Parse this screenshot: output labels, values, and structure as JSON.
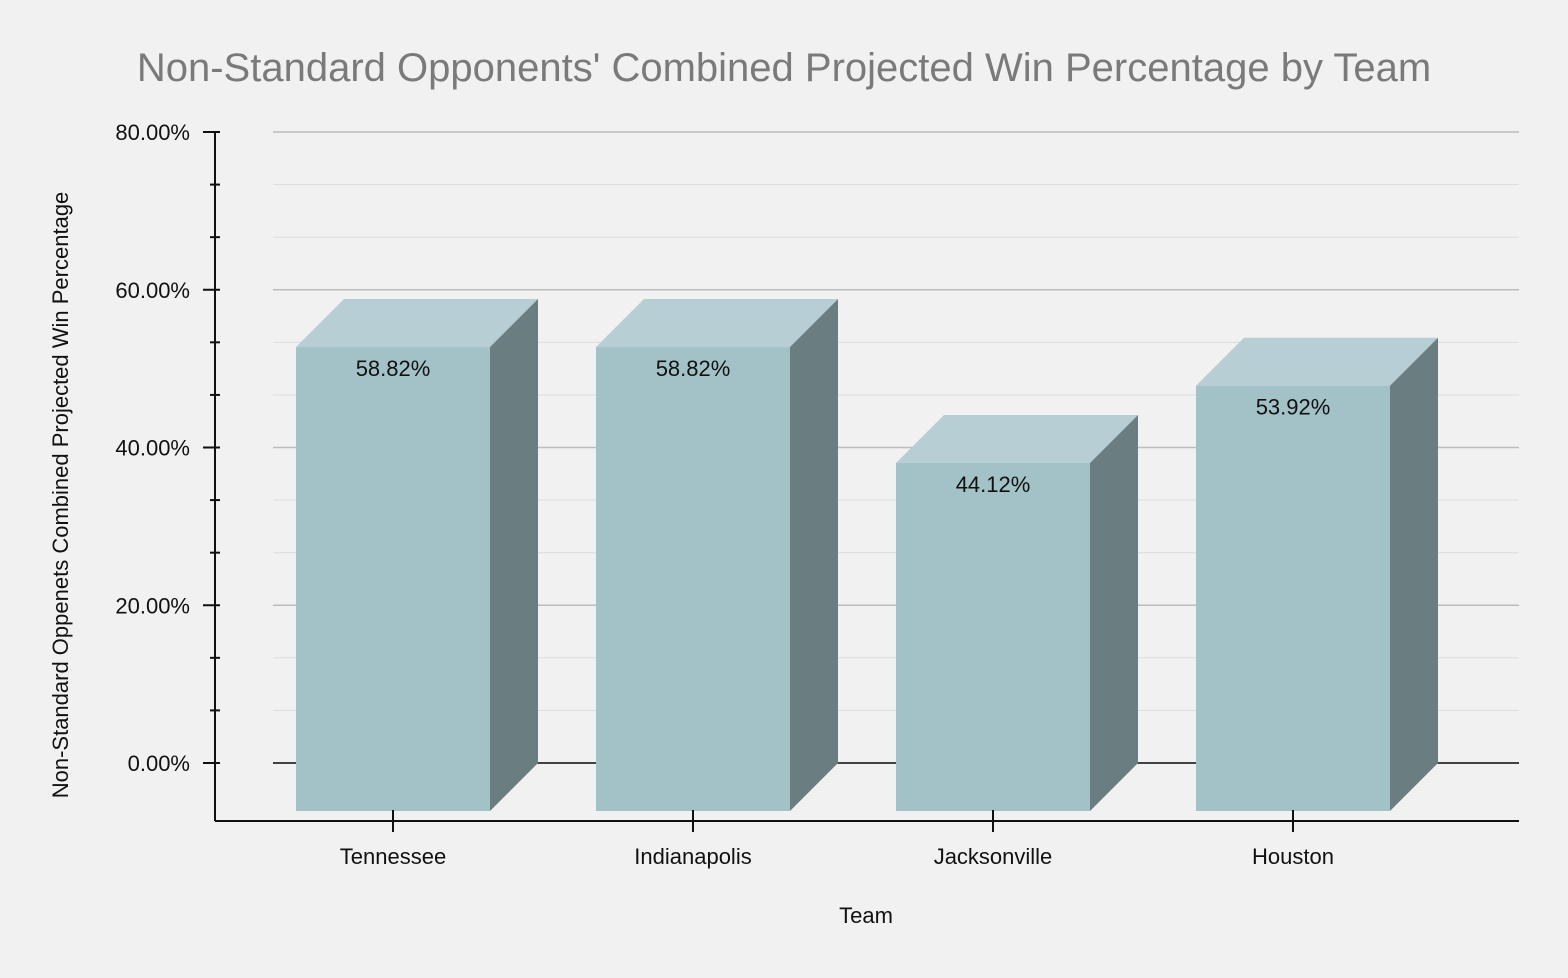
{
  "chart_data": {
    "type": "bar",
    "title": "Non-Standard Opponents' Combined Projected Win Percentage by Team",
    "xlabel": "Team",
    "ylabel": "Non-Standard Oppenets Combined Projected Win Percentage",
    "categories": [
      "Tennessee",
      "Indianapolis",
      "Jacksonville",
      "Houston"
    ],
    "values": [
      58.82,
      58.82,
      44.12,
      53.92
    ],
    "data_labels": [
      "58.82%",
      "58.82%",
      "44.12%",
      "53.92%"
    ],
    "yticks": [
      "0.00%",
      "20.00%",
      "40.00%",
      "60.00%",
      "80.00%"
    ],
    "ylim": [
      0,
      80
    ],
    "grid": true,
    "style": "3d",
    "colors": {
      "bar_front": "#a2c2c7",
      "bar_top": "#b7cfd4",
      "bar_side": "#6a7e82",
      "grid_major": "#bdbdbd",
      "grid_minor": "#dedede",
      "axis": "#111111"
    }
  }
}
